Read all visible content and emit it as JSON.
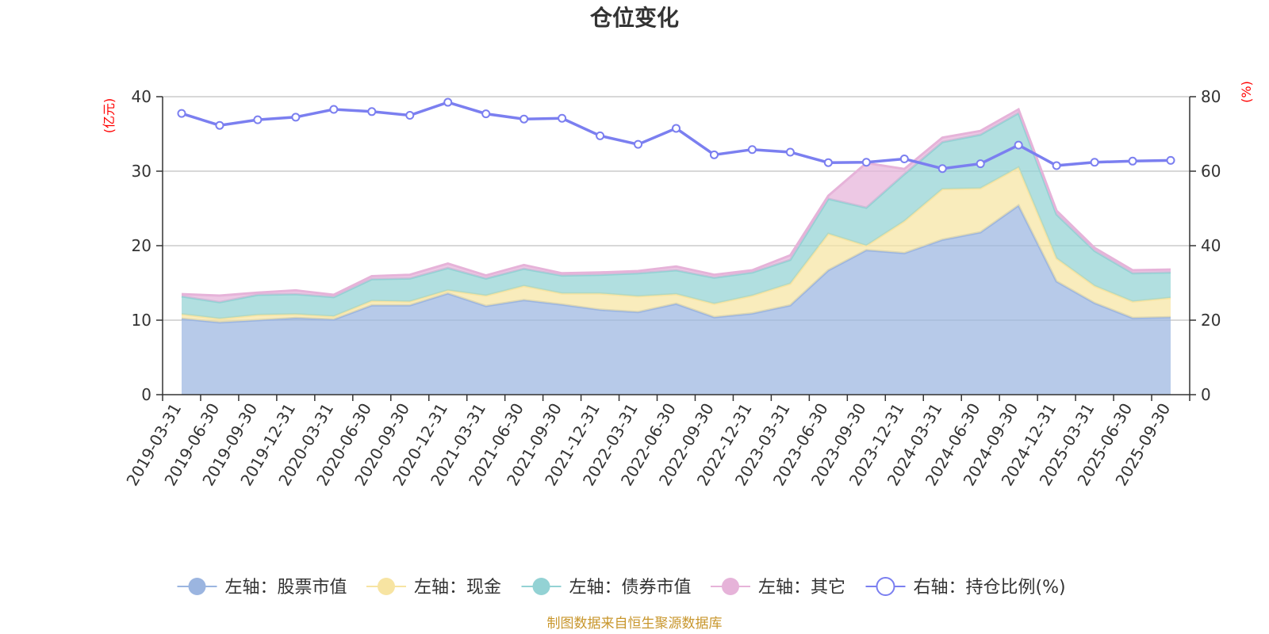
{
  "chart_data": {
    "type": "area",
    "title": "仓位变化",
    "source": "制图数据来自恒生聚源数据库",
    "left_unit": "(亿元)",
    "right_unit": "(%)",
    "y_left_lim": [
      0,
      40
    ],
    "y_right_lim": [
      0,
      80
    ],
    "y_left_ticks": [
      "0",
      "10",
      "20",
      "30",
      "40"
    ],
    "y_right_ticks": [
      "0",
      "20",
      "40",
      "60",
      "80"
    ],
    "categories": [
      "2019-03-31",
      "2019-06-30",
      "2019-09-30",
      "2019-12-31",
      "2020-03-31",
      "2020-06-30",
      "2020-09-30",
      "2020-12-31",
      "2021-03-31",
      "2021-06-30",
      "2021-09-30",
      "2021-12-31",
      "2022-03-31",
      "2022-06-30",
      "2022-09-30",
      "2022-12-31",
      "2023-03-31",
      "2023-06-30",
      "2023-09-30",
      "2023-12-31",
      "2024-03-31",
      "2024-06-30",
      "2024-09-30",
      "2024-12-31",
      "2025-03-31",
      "2025-06-30",
      "2025-09-30"
    ],
    "series": [
      {
        "name": "左轴：股票市值",
        "axis": "left",
        "stack": true,
        "color": "#9bb5e0",
        "values": [
          10.2,
          9.7,
          10.0,
          10.3,
          10.1,
          12.0,
          12.0,
          13.6,
          11.9,
          12.7,
          12.1,
          11.4,
          11.1,
          12.2,
          10.4,
          10.9,
          12.0,
          16.7,
          19.4,
          19.0,
          20.8,
          21.8,
          25.4,
          15.2,
          12.3,
          10.3,
          10.4
        ]
      },
      {
        "name": "左轴：现金",
        "axis": "left",
        "stack": true,
        "color": "#f7e4a2",
        "values": [
          0.6,
          0.5,
          0.7,
          0.5,
          0.4,
          0.6,
          0.5,
          0.4,
          1.4,
          1.9,
          1.5,
          2.2,
          2.1,
          1.3,
          1.8,
          2.4,
          2.9,
          4.9,
          0.6,
          4.3,
          6.8,
          5.9,
          5.1,
          3.1,
          2.3,
          2.2,
          2.6
        ]
      },
      {
        "name": "左轴：债券市值",
        "axis": "left",
        "stack": true,
        "color": "#93d2d4",
        "values": [
          2.4,
          2.2,
          2.7,
          2.7,
          2.6,
          2.9,
          3.1,
          3.0,
          2.3,
          2.3,
          2.4,
          2.5,
          3.1,
          3.2,
          3.5,
          3.1,
          3.2,
          4.7,
          5.1,
          6.3,
          6.3,
          7.2,
          7.3,
          5.9,
          4.7,
          3.8,
          3.4
        ]
      },
      {
        "name": "左轴：其它",
        "axis": "left",
        "stack": true,
        "color": "#e6b3d9",
        "values": [
          0.3,
          0.9,
          0.3,
          0.5,
          0.3,
          0.4,
          0.5,
          0.6,
          0.4,
          0.5,
          0.3,
          0.3,
          0.3,
          0.5,
          0.4,
          0.3,
          0.6,
          0.4,
          6.0,
          0.7,
          0.6,
          0.5,
          0.5,
          0.5,
          0.4,
          0.4,
          0.4
        ]
      },
      {
        "name": "右轴：持仓比例(%)",
        "axis": "right",
        "stack": false,
        "color": "#7b7ff0",
        "values": [
          75.5,
          72.3,
          73.8,
          74.5,
          76.6,
          76.0,
          75.0,
          78.5,
          75.4,
          74.0,
          74.2,
          69.5,
          67.2,
          71.5,
          64.4,
          65.8,
          65.1,
          62.3,
          62.4,
          63.3,
          60.7,
          62.0,
          67.0,
          61.5,
          62.4,
          62.7,
          62.9
        ]
      }
    ]
  }
}
